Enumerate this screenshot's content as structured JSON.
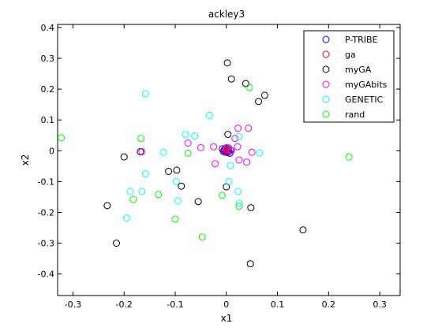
{
  "chart_data": {
    "type": "scatter",
    "title": "ackley3",
    "xlabel": "x1",
    "ylabel": "x2",
    "xlim": [
      -0.33,
      0.34
    ],
    "ylim": [
      -0.47,
      0.41
    ],
    "xticks": [
      -0.3,
      -0.2,
      -0.1,
      0,
      0.1,
      0.2,
      0.3
    ],
    "xtick_labels": [
      "-0.3",
      "-0.2",
      "-0.1",
      "0",
      "0.1",
      "0.2",
      "0.3"
    ],
    "yticks": [
      -0.4,
      -0.3,
      -0.2,
      -0.1,
      0,
      0.1,
      0.2,
      0.3,
      0.4
    ],
    "ytick_labels": [
      "-0.4",
      "-0.3",
      "-0.2",
      "-0.1",
      "0",
      "0.1",
      "0.2",
      "0.3",
      "0.4"
    ],
    "grid": false,
    "legend_position": "top-right",
    "marker": "open-circle",
    "series": [
      {
        "name": "P-TRIBE",
        "color": "#0000ff",
        "points": [
          [
            0.0,
            0.0
          ],
          [
            0.003,
            0.004
          ],
          [
            -0.003,
            -0.004
          ],
          [
            0.005,
            -0.002
          ],
          [
            -0.004,
            0.003
          ],
          [
            0.002,
            -0.006
          ],
          [
            -0.006,
            -0.002
          ],
          [
            0.008,
            0.002
          ],
          [
            -0.002,
            0.008
          ],
          [
            0.004,
            0.009
          ],
          [
            -0.008,
            0.006
          ],
          [
            0.007,
            -0.008
          ]
        ]
      },
      {
        "name": "ga",
        "color": "#ff0000",
        "points": [
          [
            0.001,
            0.002
          ],
          [
            -0.002,
            -0.001
          ],
          [
            0.004,
            0.001
          ],
          [
            -0.001,
            0.005
          ]
        ]
      },
      {
        "name": "myGA",
        "color": "#000000",
        "points": [
          [
            0.002,
            0.285
          ],
          [
            0.01,
            0.233
          ],
          [
            0.038,
            0.218
          ],
          [
            0.075,
            0.18
          ],
          [
            0.063,
            0.16
          ],
          [
            0.003,
            0.053
          ],
          [
            -0.168,
            -0.003
          ],
          [
            -0.2,
            -0.02
          ],
          [
            -0.113,
            -0.067
          ],
          [
            -0.097,
            -0.063
          ],
          [
            -0.088,
            -0.115
          ],
          [
            -0.055,
            -0.165
          ],
          [
            0.0,
            -0.117
          ],
          [
            0.048,
            -0.185
          ],
          [
            -0.233,
            -0.178
          ],
          [
            -0.215,
            -0.3
          ],
          [
            0.15,
            -0.257
          ],
          [
            0.047,
            -0.367
          ]
        ]
      },
      {
        "name": "myGAbits",
        "color": "#ff00ff",
        "points": [
          [
            0.023,
            0.073
          ],
          [
            0.043,
            0.073
          ],
          [
            0.017,
            0.04
          ],
          [
            -0.075,
            0.025
          ],
          [
            -0.05,
            0.01
          ],
          [
            -0.025,
            0.013
          ],
          [
            0.022,
            0.013
          ],
          [
            0.05,
            -0.005
          ],
          [
            0.025,
            -0.03
          ],
          [
            0.04,
            -0.037
          ],
          [
            -0.022,
            -0.042
          ],
          [
            -0.165,
            -0.003
          ],
          [
            0.01,
            0.0
          ],
          [
            0.0,
            0.01
          ]
        ]
      },
      {
        "name": "GENETIC",
        "color": "#00ffff",
        "points": [
          [
            -0.158,
            0.185
          ],
          [
            -0.033,
            0.115
          ],
          [
            -0.08,
            0.053
          ],
          [
            -0.062,
            0.048
          ],
          [
            0.025,
            0.046
          ],
          [
            -0.123,
            -0.005
          ],
          [
            0.065,
            -0.007
          ],
          [
            0.008,
            -0.048
          ],
          [
            -0.158,
            -0.075
          ],
          [
            -0.098,
            -0.1
          ],
          [
            0.005,
            -0.1
          ],
          [
            -0.188,
            -0.132
          ],
          [
            -0.165,
            -0.132
          ],
          [
            0.023,
            -0.132
          ],
          [
            -0.095,
            -0.163
          ],
          [
            0.025,
            -0.17
          ],
          [
            -0.195,
            -0.218
          ]
        ]
      },
      {
        "name": "rand",
        "color": "#00ff00",
        "points": [
          [
            -0.323,
            0.042
          ],
          [
            0.045,
            0.205
          ],
          [
            -0.167,
            0.04
          ],
          [
            -0.075,
            -0.008
          ],
          [
            -0.133,
            -0.142
          ],
          [
            -0.182,
            -0.158
          ],
          [
            -0.008,
            -0.145
          ],
          [
            0.025,
            -0.18
          ],
          [
            -0.1,
            -0.222
          ],
          [
            -0.047,
            -0.28
          ],
          [
            0.24,
            -0.02
          ]
        ]
      }
    ]
  }
}
